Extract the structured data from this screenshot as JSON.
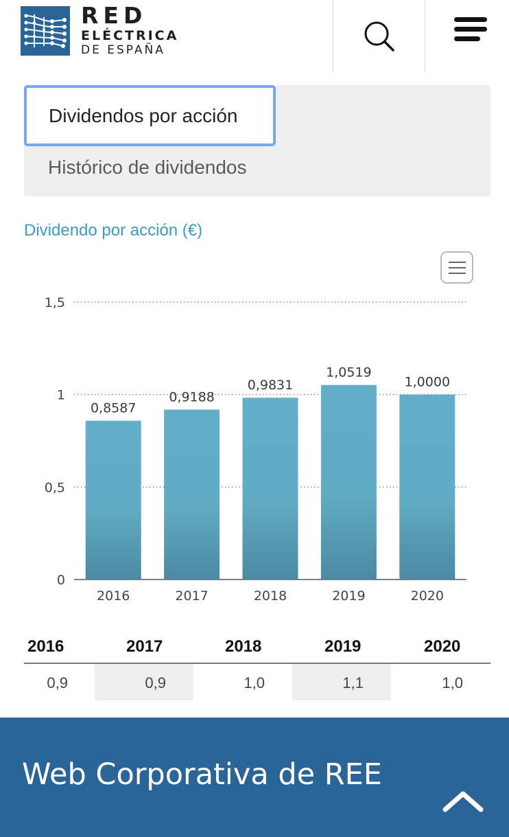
{
  "header": {
    "logo": {
      "line1": "RED",
      "line2": "ELÉCTRICA",
      "line3": "DE ESPAÑA",
      "color": "#2b6497"
    },
    "search_icon": "search-icon",
    "menu_icon": "hamburger-menu-icon"
  },
  "tabs": {
    "active_label": "Dividendos por acción",
    "other_label": "Histórico de dividendos"
  },
  "chart_title": "Dividendo por acción (€)",
  "chart_menu_icon": "chart-context-menu-icon",
  "chart_data": {
    "type": "bar",
    "title": "Dividendo por acción (€)",
    "categories": [
      "2016",
      "2017",
      "2018",
      "2019",
      "2020"
    ],
    "values": [
      0.8587,
      0.9188,
      0.9831,
      1.0519,
      1.0
    ],
    "data_labels": [
      "0,8587",
      "0,9188",
      "0,9831",
      "1,0519",
      "1,0000"
    ],
    "ylim": [
      0,
      1.5
    ],
    "yticks": [
      0,
      0.5,
      1,
      1.5
    ],
    "ytick_labels": [
      "0",
      "0,5",
      "1",
      "1,5"
    ],
    "grid": "dotted horizontal",
    "bar_color_top": "#63aec8",
    "bar_color_bottom": "#4b8aa2",
    "xlabel": "",
    "ylabel": ""
  },
  "table": {
    "headers": [
      "2016",
      "2017",
      "2018",
      "2019",
      "2020"
    ],
    "values": [
      "0,9",
      "0,9",
      "1,0",
      "1,1",
      "1,0"
    ]
  },
  "footer": {
    "title": "Web Corporativa de REE",
    "up_icon": "chevron-up-icon",
    "color": "#2b6497"
  }
}
